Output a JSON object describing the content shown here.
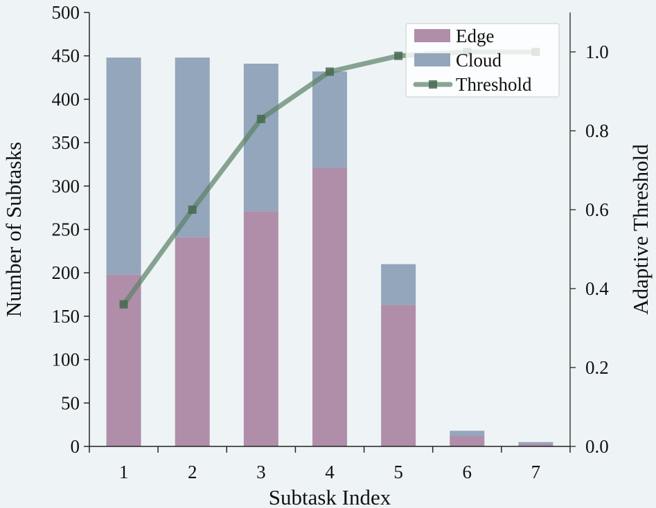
{
  "chart_data": {
    "type": "bar",
    "stacked": true,
    "title": "",
    "xlabel": "Subtask Index",
    "ylabel": "Number of Subtasks",
    "y2label": "Adaptive Threshold",
    "categories": [
      "1",
      "2",
      "3",
      "4",
      "5",
      "6",
      "7"
    ],
    "ylim": [
      0,
      500
    ],
    "yticks": [
      0,
      50,
      100,
      150,
      200,
      250,
      300,
      350,
      400,
      450,
      500
    ],
    "y2lim": [
      0,
      1.1
    ],
    "y2ticks": [
      "0.0",
      "0.2",
      "0.4",
      "0.6",
      "0.8",
      "1.0"
    ],
    "grid": false,
    "legend_position": "top-right",
    "series": [
      {
        "name": "Edge",
        "type": "bar",
        "axis": "left",
        "color": "#b08ea9",
        "values": [
          198,
          241,
          271,
          321,
          163,
          12,
          3
        ]
      },
      {
        "name": "Cloud",
        "type": "bar",
        "axis": "left",
        "color": "#93a6bb",
        "values": [
          250,
          207,
          170,
          111,
          47,
          6,
          2
        ]
      },
      {
        "name": "Threshold",
        "type": "line",
        "axis": "right",
        "color": "#5e826a",
        "marker": "square",
        "values": [
          0.36,
          0.6,
          0.83,
          0.95,
          0.99,
          1.0,
          1.0
        ]
      }
    ]
  }
}
